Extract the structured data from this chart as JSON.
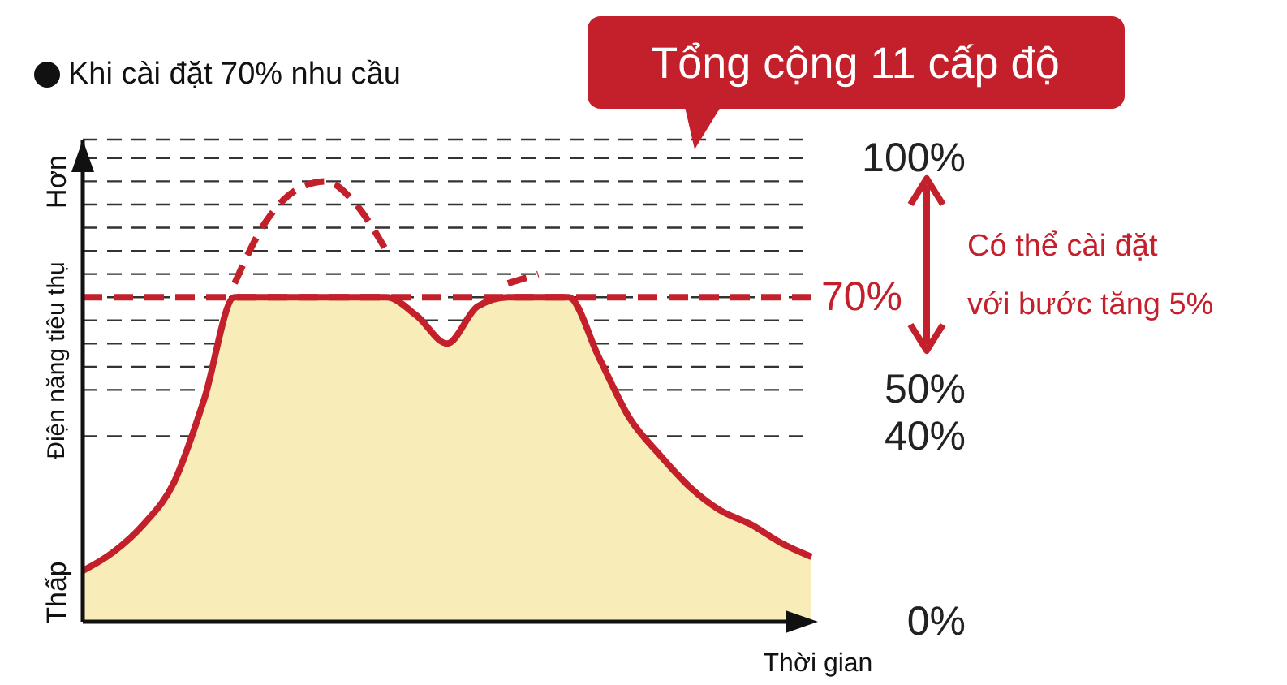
{
  "chart_data": {
    "type": "area",
    "title": "Khi cài đặt 70% nhu cầu",
    "ylabel": "Điện năng tiêu thụ",
    "xlabel": "Thời gian",
    "annotations": [
      "Tổng cộng 11 cấp độ",
      "Có thể cài đặt\nvới bước tăng 5%",
      "Thấp",
      "Hơn"
    ],
    "categories": [
      null,
      null,
      null,
      null,
      null,
      null,
      null,
      null,
      null,
      null,
      null,
      null,
      null,
      null,
      null,
      null,
      null,
      null,
      null,
      null,
      null,
      null,
      null,
      null,
      null
    ],
    "series": [
      {
        "color": "#c4202b",
        "values": [
          11,
          15,
          21,
          30,
          48,
          70,
          70,
          70,
          70,
          70,
          70,
          66,
          60,
          68,
          70,
          70,
          70,
          57,
          44,
          36,
          29,
          24,
          21,
          17,
          14
        ]
      },
      {
        "type": "line",
        "color": "#c4202b",
        "line_style": "dashed",
        "values": [
          null,
          null,
          null,
          null,
          null,
          73,
          86,
          93,
          95,
          90,
          80,
          null,
          null,
          null,
          73,
          75,
          null,
          null,
          null,
          null,
          null,
          null,
          null,
          null,
          null
        ]
      }
    ],
    "ylim": [
      0,
      104
    ],
    "yticks": [
      {
        "value": 0,
        "label": "0%"
      },
      {
        "value": 40,
        "label": "40%"
      },
      {
        "value": 50,
        "label": "50%"
      },
      {
        "value": 55,
        "label": null
      },
      {
        "value": 60,
        "label": null
      },
      {
        "value": 65,
        "label": null
      },
      {
        "value": 70,
        "label": null
      },
      {
        "value": 75,
        "label": null
      },
      {
        "value": 80,
        "label": null
      },
      {
        "value": 85,
        "label": null
      },
      {
        "value": 90,
        "label": null
      },
      {
        "value": 95,
        "label": null
      },
      {
        "value": 100,
        "label": "100%"
      }
    ],
    "ref_lines": [
      {
        "axis": "y",
        "value": 70,
        "label": "70%",
        "color": "#c4202b",
        "line_style": "dashed"
      }
    ],
    "grid": "y",
    "legend": false
  }
}
